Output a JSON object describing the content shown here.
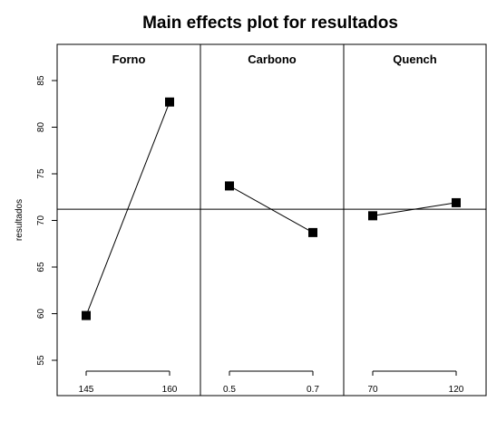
{
  "chart_data": {
    "type": "line",
    "title": "Main effects plot for resultados",
    "ylabel": "resultados",
    "ylim": [
      53,
      89
    ],
    "yticks": [
      55,
      60,
      65,
      70,
      75,
      80,
      85
    ],
    "grand_mean": 71.2,
    "marker": "filled-square",
    "line_color": "#000000",
    "panels": [
      {
        "factor": "Forno",
        "levels": [
          "145",
          "160"
        ],
        "values": [
          59.8,
          82.7
        ]
      },
      {
        "factor": "Carbono",
        "levels": [
          "0.5",
          "0.7"
        ],
        "values": [
          73.7,
          68.7
        ]
      },
      {
        "factor": "Quench",
        "levels": [
          "70",
          "120"
        ],
        "values": [
          70.5,
          71.9
        ]
      }
    ]
  }
}
